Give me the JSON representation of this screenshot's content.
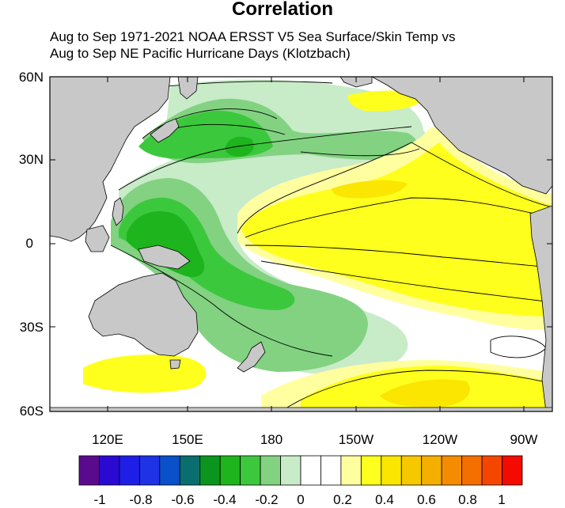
{
  "title": "Correlation",
  "subtitle_line1": "Aug to Sep 1971-2021 NOAA ERSST V5 Sea Surface/Skin Temp vs",
  "subtitle_line2": "Aug to Sep NE Pacific Hurricane Days (Klotzbach)",
  "map": {
    "lat_labels": [
      "60N",
      "30N",
      "0",
      "30S",
      "60S"
    ],
    "lon_labels": [
      "120E",
      "150E",
      "180",
      "150W",
      "120W",
      "90W"
    ],
    "land_color": "#c8c8c8",
    "ocean_color": "#ffffff"
  },
  "colorbar": {
    "colors": [
      "#5a0a8c",
      "#2a0ad2",
      "#1e1ee6",
      "#1e32e6",
      "#0a50c8",
      "#0a6e6e",
      "#0a961e",
      "#1eb41e",
      "#3cc83c",
      "#82d282",
      "#c8ebc8",
      "#ffffff",
      "#ffffff",
      "#ffffa0",
      "#ffff1e",
      "#fae600",
      "#f5c800",
      "#f5af00",
      "#f58c00",
      "#f56e00",
      "#f54600",
      "#f50a00"
    ],
    "tick_labels": [
      "-1",
      "-0.8",
      "-0.6",
      "-0.4",
      "-0.2",
      "0",
      "0.2",
      "0.4",
      "0.6",
      "0.8",
      "1"
    ]
  }
}
